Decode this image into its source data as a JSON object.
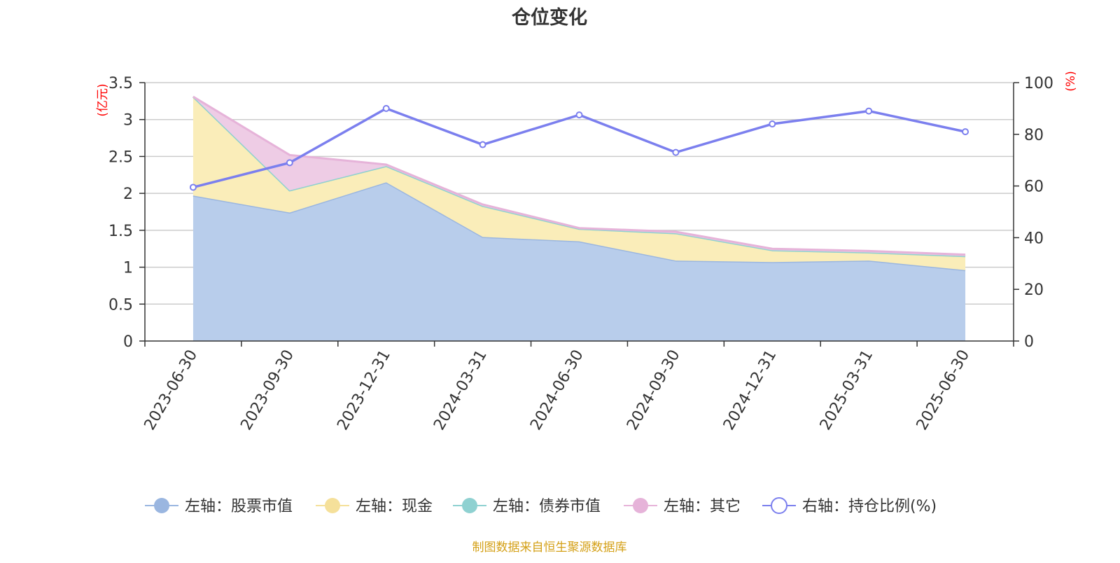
{
  "chart_data": {
    "type": "area",
    "title": "仓位变化",
    "left_axis_unit": "(亿元)",
    "right_axis_unit": "(%)",
    "categories": [
      "2023-06-30",
      "2023-09-30",
      "2023-12-31",
      "2024-03-31",
      "2024-06-30",
      "2024-09-30",
      "2024-12-31",
      "2025-03-31",
      "2025-06-30"
    ],
    "left_axis": {
      "min": 0,
      "max": 3.5,
      "ticks": [
        "0",
        "0.5",
        "1",
        "1.5",
        "2",
        "2.5",
        "3",
        "3.5"
      ]
    },
    "right_axis": {
      "min": 0,
      "max": 100,
      "ticks": [
        "0",
        "20",
        "40",
        "60",
        "80",
        "100"
      ]
    },
    "grid": true,
    "legend_position": "bottom",
    "stacked_series": [
      {
        "name": "左轴：股票市值",
        "axis": "left",
        "color": "#9ab6e0",
        "fill": "#b8cdeb",
        "values": [
          1.97,
          1.74,
          2.15,
          1.41,
          1.35,
          1.09,
          1.07,
          1.09,
          0.96
        ]
      },
      {
        "name": "左轴：现金",
        "axis": "left",
        "color": "#f5e09a",
        "fill": "#faedb9",
        "values": [
          1.34,
          0.3,
          0.22,
          0.42,
          0.17,
          0.37,
          0.16,
          0.11,
          0.19
        ]
      },
      {
        "name": "左轴：债券市值",
        "axis": "left",
        "color": "#8fd1d1",
        "fill": "#b5e2e2",
        "values": [
          0,
          0,
          0,
          0,
          0,
          0,
          0,
          0,
          0
        ]
      },
      {
        "name": "左轴：其它",
        "axis": "left",
        "color": "#e6b3d9",
        "fill": "#eecce5",
        "values": [
          0.0,
          0.48,
          0.02,
          0.02,
          0.01,
          0.02,
          0.02,
          0.02,
          0.02
        ]
      }
    ],
    "line_series": [
      {
        "name": "右轴：持仓比例(%)",
        "axis": "right",
        "color": "#7b7fee",
        "values": [
          59.5,
          69.0,
          90.0,
          76.0,
          87.5,
          73.0,
          84.0,
          89.0,
          81.0
        ]
      }
    ]
  },
  "footer": {
    "source": "制图数据来自恒生聚源数据库"
  },
  "colors": {
    "title": "#333333",
    "axis_unit": "#ff0000",
    "source": "#d4a017"
  }
}
